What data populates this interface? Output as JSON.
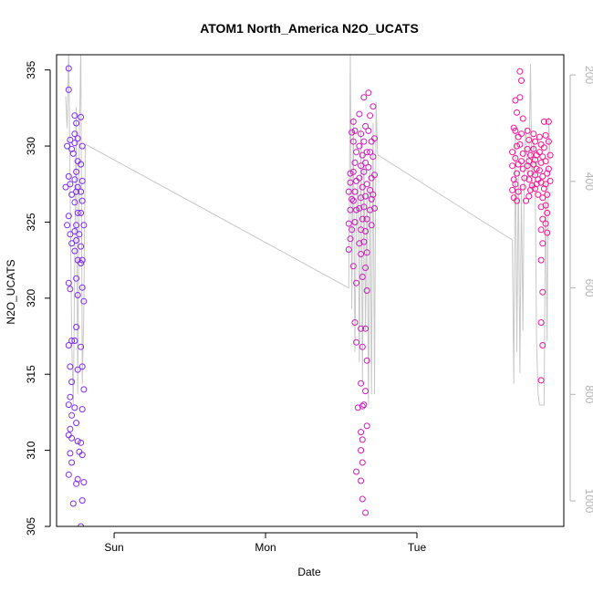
{
  "chart_data": {
    "type": "scatter",
    "title": "ATOM1 North_America N2O_UCATS",
    "xlabel": "Date",
    "ylabel": "N2O_UCATS",
    "x_unit": "days since Saturday 00:00",
    "x_ticks": [
      {
        "value": 1.0,
        "label": "Sun"
      },
      {
        "value": 2.0,
        "label": "Mon"
      },
      {
        "value": 3.0,
        "label": "Tue"
      }
    ],
    "xlim": [
      0.62,
      3.97
    ],
    "ylim": [
      305,
      336
    ],
    "y_ticks": [
      305,
      310,
      315,
      320,
      325,
      330,
      335
    ],
    "y2_ticks": [
      200,
      400,
      600,
      800,
      1000
    ],
    "y2lim_top_to_bottom": [
      162,
      1048
    ],
    "grid": false,
    "legend": "none",
    "point_color_start": "#7b2cff",
    "point_color_end": "#ff1493",
    "line_color": "#c8c8c8",
    "axis_color": "#000000",
    "right_axis_color": "#b4b4b4",
    "series": [
      {
        "name": "N2O_UCATS",
        "points": [
          [
            0.7,
            335.1
          ],
          [
            0.7,
            333.7
          ],
          [
            0.71,
            330.4
          ],
          [
            0.69,
            330.0
          ],
          [
            0.72,
            329.8
          ],
          [
            0.7,
            328.0
          ],
          [
            0.71,
            327.5
          ],
          [
            0.68,
            327.3
          ],
          [
            0.72,
            326.8
          ],
          [
            0.7,
            325.4
          ],
          [
            0.69,
            324.8
          ],
          [
            0.71,
            324.2
          ],
          [
            0.72,
            323.6
          ],
          [
            0.7,
            321.0
          ],
          [
            0.71,
            320.6
          ],
          [
            0.72,
            317.2
          ],
          [
            0.7,
            316.9
          ],
          [
            0.71,
            315.5
          ],
          [
            0.72,
            314.5
          ],
          [
            0.71,
            313.5
          ],
          [
            0.7,
            313.0
          ],
          [
            0.72,
            312.3
          ],
          [
            0.71,
            311.4
          ],
          [
            0.7,
            311.0
          ],
          [
            0.72,
            310.8
          ],
          [
            0.71,
            309.8
          ],
          [
            0.72,
            309.2
          ],
          [
            0.7,
            308.4
          ],
          [
            0.73,
            306.5
          ],
          [
            0.72,
            304.6
          ],
          [
            0.74,
            332.0
          ],
          [
            0.75,
            331.5
          ],
          [
            0.74,
            330.8
          ],
          [
            0.76,
            330.5
          ],
          [
            0.74,
            330.2
          ],
          [
            0.73,
            329.5
          ],
          [
            0.76,
            329.0
          ],
          [
            0.75,
            328.3
          ],
          [
            0.74,
            327.8
          ],
          [
            0.76,
            327.3
          ],
          [
            0.75,
            327.0
          ],
          [
            0.74,
            326.3
          ],
          [
            0.76,
            325.6
          ],
          [
            0.75,
            324.8
          ],
          [
            0.74,
            324.4
          ],
          [
            0.77,
            324.2
          ],
          [
            0.75,
            323.8
          ],
          [
            0.74,
            323.1
          ],
          [
            0.76,
            322.5
          ],
          [
            0.75,
            321.3
          ],
          [
            0.76,
            320.2
          ],
          [
            0.75,
            318.1
          ],
          [
            0.74,
            317.2
          ],
          [
            0.76,
            315.3
          ],
          [
            0.74,
            312.8
          ],
          [
            0.75,
            311.8
          ],
          [
            0.76,
            310.6
          ],
          [
            0.77,
            309.9
          ],
          [
            0.76,
            308.1
          ],
          [
            0.75,
            307.8
          ],
          [
            0.78,
            331.9
          ],
          [
            0.79,
            330.0
          ],
          [
            0.78,
            328.8
          ],
          [
            0.79,
            327.7
          ],
          [
            0.78,
            327.0
          ],
          [
            0.79,
            326.4
          ],
          [
            0.78,
            325.6
          ],
          [
            0.8,
            324.8
          ],
          [
            0.78,
            323.4
          ],
          [
            0.79,
            322.5
          ],
          [
            0.78,
            322.3
          ],
          [
            0.79,
            320.7
          ],
          [
            0.8,
            319.8
          ],
          [
            0.78,
            316.8
          ],
          [
            0.79,
            315.5
          ],
          [
            0.8,
            314.0
          ],
          [
            0.79,
            312.7
          ],
          [
            0.78,
            310.5
          ],
          [
            0.79,
            309.7
          ],
          [
            0.8,
            307.9
          ],
          [
            0.79,
            306.7
          ],
          [
            0.78,
            305.0
          ],
          [
            2.56,
            328.2
          ],
          [
            2.57,
            330.9
          ],
          [
            2.56,
            327.6
          ],
          [
            2.55,
            327.0
          ],
          [
            2.57,
            326.5
          ],
          [
            2.56,
            325.8
          ],
          [
            2.55,
            324.9
          ],
          [
            2.57,
            324.5
          ],
          [
            2.56,
            323.9
          ],
          [
            2.55,
            323.2
          ],
          [
            2.58,
            331.6
          ],
          [
            2.59,
            331.0
          ],
          [
            2.58,
            330.3
          ],
          [
            2.6,
            329.6
          ],
          [
            2.59,
            328.9
          ],
          [
            2.58,
            328.3
          ],
          [
            2.6,
            327.7
          ],
          [
            2.59,
            327.0
          ],
          [
            2.58,
            326.4
          ],
          [
            2.6,
            325.8
          ],
          [
            2.59,
            325.0
          ],
          [
            2.58,
            322.1
          ],
          [
            2.6,
            321.0
          ],
          [
            2.59,
            318.4
          ],
          [
            2.6,
            317.1
          ],
          [
            2.61,
            312.8
          ],
          [
            2.6,
            308.6
          ],
          [
            2.62,
            332.1
          ],
          [
            2.63,
            330.8
          ],
          [
            2.62,
            330.0
          ],
          [
            2.64,
            329.4
          ],
          [
            2.63,
            328.7
          ],
          [
            2.62,
            327.9
          ],
          [
            2.64,
            327.3
          ],
          [
            2.63,
            326.6
          ],
          [
            2.62,
            325.9
          ],
          [
            2.64,
            325.2
          ],
          [
            2.63,
            324.5
          ],
          [
            2.62,
            323.6
          ],
          [
            2.63,
            322.9
          ],
          [
            2.64,
            321.4
          ],
          [
            2.63,
            318.0
          ],
          [
            2.64,
            316.8
          ],
          [
            2.63,
            314.4
          ],
          [
            2.64,
            312.9
          ],
          [
            2.63,
            311.2
          ],
          [
            2.64,
            310.7
          ],
          [
            2.63,
            310.0
          ],
          [
            2.64,
            309.2
          ],
          [
            2.63,
            308.0
          ],
          [
            2.64,
            306.8
          ],
          [
            2.65,
            333.2
          ],
          [
            2.66,
            331.3
          ],
          [
            2.65,
            330.3
          ],
          [
            2.67,
            329.6
          ],
          [
            2.66,
            328.9
          ],
          [
            2.65,
            328.3
          ],
          [
            2.67,
            327.5
          ],
          [
            2.66,
            326.7
          ],
          [
            2.65,
            326.0
          ],
          [
            2.67,
            325.2
          ],
          [
            2.66,
            324.4
          ],
          [
            2.65,
            323.7
          ],
          [
            2.67,
            323.0
          ],
          [
            2.66,
            322.0
          ],
          [
            2.67,
            320.5
          ],
          [
            2.66,
            318.0
          ],
          [
            2.67,
            315.9
          ],
          [
            2.66,
            313.9
          ],
          [
            2.65,
            313.0
          ],
          [
            2.67,
            311.6
          ],
          [
            2.66,
            305.9
          ],
          [
            2.68,
            333.5
          ],
          [
            2.69,
            332.0
          ],
          [
            2.68,
            331.0
          ],
          [
            2.7,
            330.3
          ],
          [
            2.69,
            329.6
          ],
          [
            2.68,
            328.6
          ],
          [
            2.7,
            327.9
          ],
          [
            2.69,
            327.1
          ],
          [
            2.7,
            326.5
          ],
          [
            2.69,
            325.8
          ],
          [
            2.7,
            324.8
          ],
          [
            2.71,
            332.6
          ],
          [
            2.72,
            330.5
          ],
          [
            2.71,
            329.3
          ],
          [
            2.72,
            328.1
          ],
          [
            2.71,
            326.8
          ],
          [
            2.72,
            325.9
          ],
          [
            3.63,
            329.6
          ],
          [
            3.64,
            331.2
          ],
          [
            3.63,
            328.7
          ],
          [
            3.64,
            327.8
          ],
          [
            3.63,
            327.1
          ],
          [
            3.64,
            326.6
          ],
          [
            3.65,
            333.0
          ],
          [
            3.66,
            332.2
          ],
          [
            3.65,
            331.0
          ],
          [
            3.67,
            330.6
          ],
          [
            3.66,
            330.0
          ],
          [
            3.65,
            329.2
          ],
          [
            3.67,
            328.8
          ],
          [
            3.66,
            328.2
          ],
          [
            3.65,
            327.5
          ],
          [
            3.67,
            327.0
          ],
          [
            3.66,
            326.4
          ],
          [
            3.68,
            334.9
          ],
          [
            3.69,
            334.3
          ],
          [
            3.68,
            333.2
          ],
          [
            3.7,
            331.8
          ],
          [
            3.69,
            330.8
          ],
          [
            3.68,
            330.1
          ],
          [
            3.7,
            329.5
          ],
          [
            3.69,
            329.0
          ],
          [
            3.7,
            328.5
          ],
          [
            3.71,
            327.9
          ],
          [
            3.7,
            327.3
          ],
          [
            3.72,
            326.4
          ],
          [
            3.73,
            331.0
          ],
          [
            3.74,
            330.4
          ],
          [
            3.73,
            329.8
          ],
          [
            3.75,
            329.4
          ],
          [
            3.74,
            329.0
          ],
          [
            3.73,
            328.7
          ],
          [
            3.75,
            328.2
          ],
          [
            3.74,
            327.8
          ],
          [
            3.76,
            327.4
          ],
          [
            3.75,
            327.1
          ],
          [
            3.74,
            326.7
          ],
          [
            3.77,
            330.8
          ],
          [
            3.78,
            330.3
          ],
          [
            3.77,
            329.8
          ],
          [
            3.79,
            329.4
          ],
          [
            3.78,
            329.1
          ],
          [
            3.77,
            328.8
          ],
          [
            3.79,
            328.5
          ],
          [
            3.78,
            328.1
          ],
          [
            3.8,
            327.8
          ],
          [
            3.79,
            327.5
          ],
          [
            3.78,
            327.2
          ],
          [
            3.8,
            326.8
          ],
          [
            3.81,
            330.6
          ],
          [
            3.82,
            330.1
          ],
          [
            3.81,
            329.6
          ],
          [
            3.83,
            329.3
          ],
          [
            3.82,
            328.9
          ],
          [
            3.81,
            328.4
          ],
          [
            3.83,
            328.0
          ],
          [
            3.82,
            327.6
          ],
          [
            3.84,
            327.2
          ],
          [
            3.83,
            326.6
          ],
          [
            3.82,
            326.0
          ],
          [
            3.83,
            325.2
          ],
          [
            3.82,
            324.5
          ],
          [
            3.83,
            323.6
          ],
          [
            3.82,
            322.5
          ],
          [
            3.83,
            320.4
          ],
          [
            3.82,
            318.4
          ],
          [
            3.83,
            316.9
          ],
          [
            3.82,
            314.6
          ],
          [
            3.84,
            331.6
          ],
          [
            3.85,
            330.7
          ],
          [
            3.84,
            329.9
          ],
          [
            3.85,
            329.0
          ],
          [
            3.86,
            328.2
          ],
          [
            3.85,
            327.5
          ],
          [
            3.86,
            326.8
          ],
          [
            3.85,
            326.1
          ],
          [
            3.86,
            325.6
          ],
          [
            3.85,
            324.9
          ],
          [
            3.86,
            324.3
          ],
          [
            3.87,
            330.3
          ],
          [
            3.88,
            329.4
          ],
          [
            3.87,
            328.5
          ],
          [
            3.88,
            327.7
          ],
          [
            3.87,
            331.6
          ]
        ]
      }
    ],
    "pressure_line": {
      "description_axis": "right",
      "segments": [
        {
          "x": [
            0.68,
            0.69,
            0.7,
            0.71,
            0.72,
            0.73,
            0.74,
            0.75,
            0.76,
            0.77,
            0.78,
            0.79,
            0.8,
            0.81
          ],
          "y2": [
            240,
            300,
            150,
            420,
            700,
            820,
            560,
            260,
            800,
            330,
            150,
            780,
            640,
            330
          ]
        },
        {
          "x": [
            0.81,
            2.55
          ],
          "y2": [
            330,
            600
          ]
        },
        {
          "x": [
            2.55,
            2.56,
            2.57,
            2.58,
            2.59,
            2.6,
            2.61,
            2.62,
            2.63,
            2.64,
            2.65,
            2.66,
            2.67,
            2.68,
            2.69,
            2.7,
            2.71,
            2.72,
            2.73,
            2.74
          ],
          "y2": [
            600,
            160,
            640,
            280,
            720,
            460,
            400,
            740,
            300,
            780,
            340,
            680,
            420,
            820,
            380,
            800,
            290,
            800,
            250,
            350
          ]
        },
        {
          "x": [
            2.74,
            3.63
          ],
          "y2": [
            350,
            510
          ]
        },
        {
          "x": [
            3.63,
            3.64,
            3.65,
            3.66,
            3.67,
            3.68,
            3.69,
            3.7,
            3.71,
            3.72,
            3.73,
            3.74,
            3.75,
            3.76,
            3.77,
            3.78,
            3.79,
            3.8,
            3.81,
            3.82,
            3.83,
            3.84,
            3.85,
            3.86,
            3.87,
            3.88
          ],
          "y2": [
            510,
            780,
            300,
            720,
            380,
            760,
            420,
            680,
            340,
            300,
            400,
            360,
            180,
            420,
            320,
            360,
            700,
            800,
            820,
            820,
            820,
            820,
            400,
            700,
            280,
            360
          ]
        }
      ]
    }
  }
}
